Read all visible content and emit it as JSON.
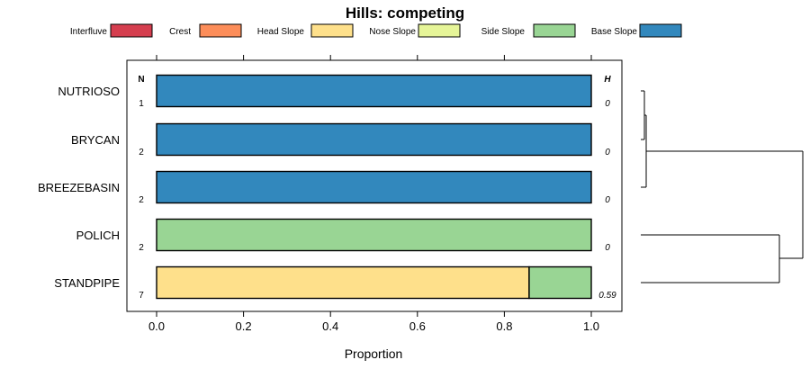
{
  "chart_data": {
    "type": "bar",
    "orientation": "horizontal",
    "stacked": true,
    "title": "Hills: competing",
    "xlabel": "Proportion",
    "ylabel": "",
    "xlim": [
      0,
      1
    ],
    "x_ticks": [
      "0.0",
      "0.2",
      "0.4",
      "0.6",
      "0.8",
      "1.0"
    ],
    "x_tick_values": [
      0,
      0.2,
      0.4,
      0.6,
      0.8,
      1.0
    ],
    "legend_position": "top",
    "n_header": "N",
    "h_header": "H",
    "categories": [
      "NUTRIOSO",
      "BRYCAN",
      "BREEZEBASIN",
      "POLICH",
      "STANDPIPE"
    ],
    "n_values": [
      "1",
      "2",
      "2",
      "2",
      "7"
    ],
    "h_values": [
      "0",
      "0",
      "0",
      "0",
      "0.59"
    ],
    "series": [
      {
        "name": "Interfluve",
        "color": "#D53E4F",
        "values": [
          0,
          0,
          0,
          0,
          0
        ]
      },
      {
        "name": "Crest",
        "color": "#FC8D59",
        "values": [
          0,
          0,
          0,
          0,
          0
        ]
      },
      {
        "name": "Head Slope",
        "color": "#FEE08B",
        "values": [
          0,
          0,
          0,
          0,
          0.857
        ]
      },
      {
        "name": "Nose Slope",
        "color": "#E6F598",
        "values": [
          0,
          0,
          0,
          0,
          0
        ]
      },
      {
        "name": "Side Slope",
        "color": "#99D594",
        "values": [
          0,
          0,
          0,
          1,
          0.143
        ]
      },
      {
        "name": "Base Slope",
        "color": "#3288BD",
        "values": [
          1,
          1,
          1,
          0,
          0
        ]
      }
    ]
  }
}
